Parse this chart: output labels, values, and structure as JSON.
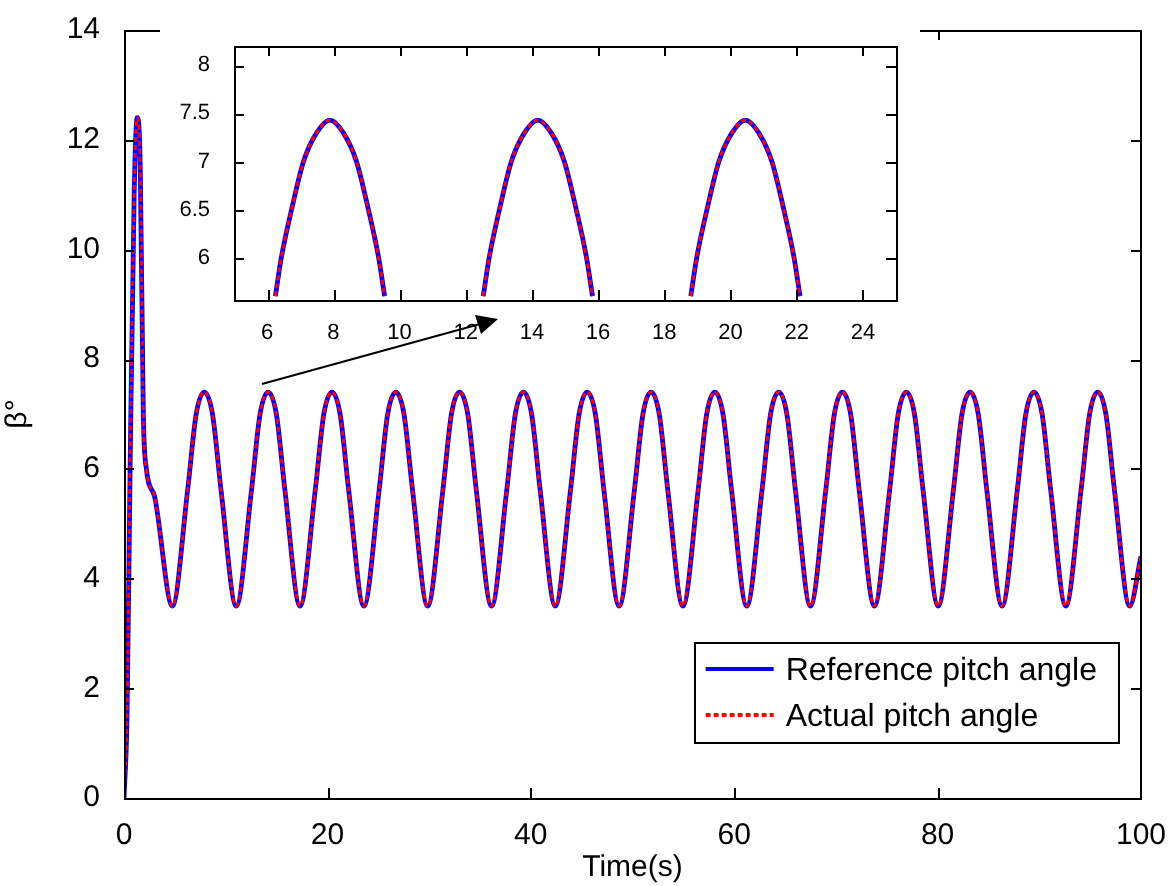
{
  "chart_data": [
    {
      "type": "line",
      "xlabel": "Time(s)",
      "ylabel": "β°",
      "xlim": [
        0,
        100
      ],
      "xticks": [
        0,
        20,
        40,
        60,
        80,
        100
      ],
      "ylim": [
        0,
        14
      ],
      "yticks": [
        0,
        2,
        4,
        6,
        8,
        10,
        12,
        14
      ],
      "legend": "bottom right",
      "x": [
        0,
        0.3,
        0.6,
        1.0,
        1.3,
        1.6,
        1.9,
        2.2,
        3.0,
        4.76,
        6.25,
        7.1,
        7.9,
        8.7,
        9.55,
        11.04,
        12.53,
        13.38,
        14.18,
        14.98,
        15.83,
        17.31,
        18.8,
        19.65,
        20.45,
        21.25,
        22.1,
        23.59,
        25.08,
        25.93,
        26.73,
        27.53,
        28.38,
        29.86,
        31.35,
        32.2,
        33.0,
        33.8,
        34.65,
        36.14,
        37.63,
        38.48,
        39.28,
        40.08,
        40.93,
        42.41,
        43.9,
        44.75,
        45.55,
        46.35,
        47.2,
        48.69,
        50.18,
        51.03,
        51.83,
        52.63,
        53.48,
        54.96,
        56.45,
        57.3,
        58.1,
        58.9,
        59.75,
        61.24,
        62.73,
        63.58,
        64.38,
        65.18,
        66.03,
        67.51,
        69.0,
        69.85,
        70.65,
        71.45,
        72.3,
        73.79,
        75.28,
        76.13,
        76.93,
        77.73,
        78.58,
        80.06,
        81.55,
        82.4,
        83.2,
        84.0,
        84.85,
        86.34,
        87.83,
        88.68,
        89.48,
        90.28,
        91.13,
        92.61,
        94.1,
        94.95,
        95.75,
        96.55,
        97.4,
        98.89,
        100
      ],
      "series": [
        {
          "name": "Reference pitch angle",
          "color": "#0000ff",
          "line_style": "solid",
          "values": [
            0,
            1.5,
            6,
            11,
            12.4,
            11.5,
            7,
            6,
            5.5,
            3.5,
            5.6,
            7.0,
            7.4,
            7.0,
            5.6,
            3.5,
            5.6,
            7.0,
            7.4,
            7.0,
            5.6,
            3.5,
            5.6,
            7.0,
            7.4,
            7.0,
            5.6,
            3.5,
            5.6,
            7.0,
            7.4,
            7.0,
            5.6,
            3.5,
            5.6,
            7.0,
            7.4,
            7.0,
            5.6,
            3.5,
            5.6,
            7.0,
            7.4,
            7.0,
            5.6,
            3.5,
            5.6,
            7.0,
            7.4,
            7.0,
            5.6,
            3.5,
            5.6,
            7.0,
            7.4,
            7.0,
            5.6,
            3.5,
            5.6,
            7.0,
            7.4,
            7.0,
            5.6,
            3.5,
            5.6,
            7.0,
            7.4,
            7.0,
            5.6,
            3.5,
            5.6,
            7.0,
            7.4,
            7.0,
            5.6,
            3.5,
            5.6,
            7.0,
            7.4,
            7.0,
            5.6,
            3.5,
            5.6,
            7.0,
            7.4,
            7.0,
            5.6,
            3.5,
            5.6,
            7.0,
            7.4,
            7.0,
            5.6,
            3.5,
            5.6,
            7.0,
            7.4,
            7.0,
            5.6,
            3.5,
            4.4
          ]
        },
        {
          "name": "Actual pitch angle",
          "color": "#ff0000",
          "line_style": "dotted",
          "values": [
            0,
            1.5,
            6,
            11,
            12.4,
            11.5,
            7,
            6,
            5.5,
            3.5,
            5.6,
            7.0,
            7.4,
            7.0,
            5.6,
            3.5,
            5.6,
            7.0,
            7.4,
            7.0,
            5.6,
            3.5,
            5.6,
            7.0,
            7.4,
            7.0,
            5.6,
            3.5,
            5.6,
            7.0,
            7.4,
            7.0,
            5.6,
            3.5,
            5.6,
            7.0,
            7.4,
            7.0,
            5.6,
            3.5,
            5.6,
            7.0,
            7.4,
            7.0,
            5.6,
            3.5,
            5.6,
            7.0,
            7.4,
            7.0,
            5.6,
            3.5,
            5.6,
            7.0,
            7.4,
            7.0,
            5.6,
            3.5,
            5.6,
            7.0,
            7.4,
            7.0,
            5.6,
            3.5,
            5.6,
            7.0,
            7.4,
            7.0,
            5.6,
            3.5,
            5.6,
            7.0,
            7.4,
            7.0,
            5.6,
            3.5,
            5.6,
            7.0,
            7.4,
            7.0,
            5.6,
            3.5,
            5.6,
            7.0,
            7.4,
            7.0,
            5.6,
            3.5,
            5.6,
            7.0,
            7.4,
            7.0,
            5.6,
            3.5,
            5.6,
            7.0,
            7.4,
            7.0,
            5.6,
            3.5,
            4.4
          ]
        }
      ]
    },
    {
      "type": "line",
      "xlim": [
        5,
        25
      ],
      "xticks": [
        6,
        8,
        10,
        12,
        14,
        16,
        18,
        20,
        22,
        24
      ],
      "ylim": [
        5.56,
        8.2
      ],
      "yticks": [
        6,
        6.5,
        7,
        7.5,
        8
      ],
      "x": [
        6.25,
        6.43,
        6.74,
        7.1,
        7.5,
        7.9,
        8.3,
        8.7,
        9.06,
        9.37,
        9.55,
        11.0,
        12.53,
        12.71,
        13.02,
        13.38,
        13.78,
        14.18,
        14.58,
        14.98,
        15.34,
        15.65,
        15.83,
        17.3,
        18.8,
        18.98,
        19.29,
        19.65,
        20.05,
        20.45,
        20.85,
        21.25,
        21.61,
        21.92,
        22.1
      ],
      "series": [
        {
          "color": "#0000ff",
          "line_style": "solid",
          "values": [
            5.6,
            6,
            6.5,
            7,
            7.3,
            7.43,
            7.3,
            7,
            6.5,
            6,
            5.6,
            null,
            5.6,
            6,
            6.5,
            7,
            7.3,
            7.43,
            7.3,
            7,
            6.5,
            6,
            5.6,
            null,
            5.6,
            6,
            6.5,
            7,
            7.3,
            7.43,
            7.3,
            7,
            6.5,
            6,
            5.6
          ]
        },
        {
          "color": "#ff0000",
          "line_style": "dotted",
          "values": [
            5.6,
            6,
            6.5,
            7,
            7.3,
            7.43,
            7.3,
            7,
            6.5,
            6,
            5.6,
            null,
            5.6,
            6,
            6.5,
            7,
            7.3,
            7.43,
            7.3,
            7,
            6.5,
            6,
            5.6,
            null,
            5.6,
            6,
            6.5,
            7,
            7.3,
            7.43,
            7.3,
            7,
            6.5,
            6,
            5.6
          ]
        }
      ]
    }
  ]
}
